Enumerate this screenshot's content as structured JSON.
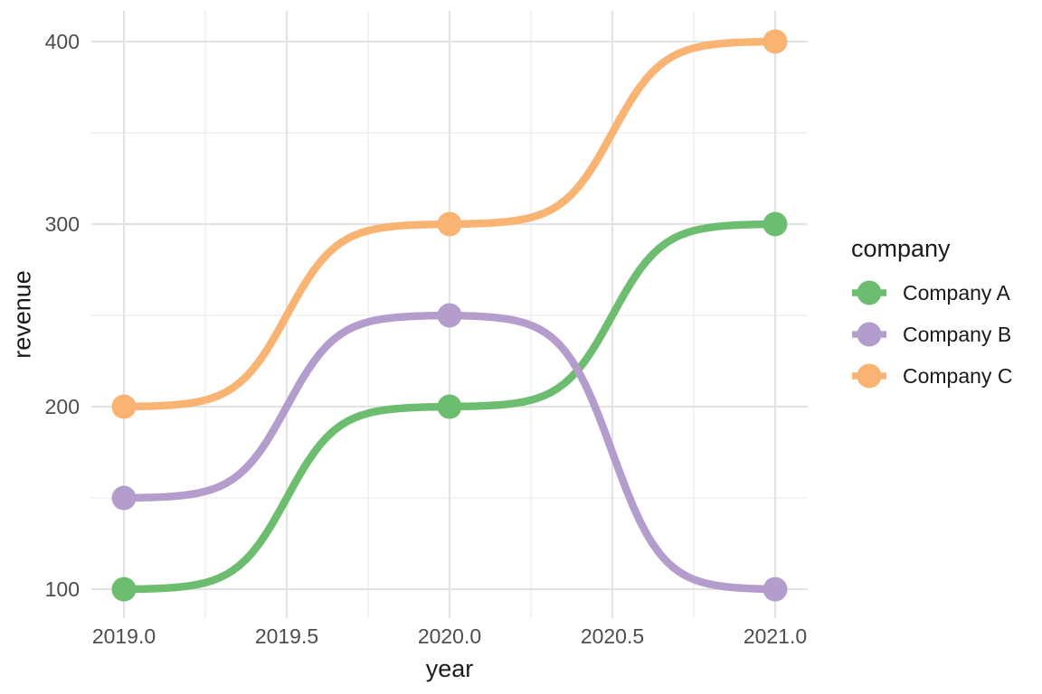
{
  "figure": {
    "background_color": "#ffffff"
  },
  "style": {
    "grid_major_color": "#e3e3e3",
    "grid_minor_color": "#ececec",
    "tick_label_color": "#4d4d4d",
    "title_color": "#1a1a1a",
    "line_width": 8.5,
    "point_radius": 13.5
  },
  "legend": {
    "title": "company",
    "position": "right",
    "entries": [
      {
        "label": "Company A",
        "color": "#6cbd6f"
      },
      {
        "label": "Company B",
        "color": "#b49dcd"
      },
      {
        "label": "Company C",
        "color": "#f9b373"
      }
    ]
  },
  "chart_data": {
    "type": "line",
    "curve": "sigmoid-bump",
    "title": "",
    "xlabel": "year",
    "ylabel": "revenue",
    "x": [
      2019,
      2020,
      2021
    ],
    "series": [
      {
        "name": "Company A",
        "color": "#6cbd6f",
        "values": [
          100,
          200,
          300
        ]
      },
      {
        "name": "Company B",
        "color": "#b49dcd",
        "values": [
          150,
          250,
          100
        ]
      },
      {
        "name": "Company C",
        "color": "#f9b373",
        "values": [
          200,
          300,
          400
        ]
      }
    ],
    "x_ticks": [
      2019.0,
      2019.5,
      2020.0,
      2020.5,
      2021.0
    ],
    "x_tick_labels": [
      "2019.0",
      "2019.5",
      "2020.0",
      "2020.5",
      "2021.0"
    ],
    "y_ticks": [
      100,
      200,
      300,
      400
    ],
    "y_tick_labels": [
      "100",
      "200",
      "300",
      "400"
    ],
    "xlim": [
      2018.9,
      2021.1
    ],
    "ylim": [
      84.2,
      416.8
    ],
    "grid": "major+minor",
    "legend_position": "right",
    "legend_title": "company"
  }
}
